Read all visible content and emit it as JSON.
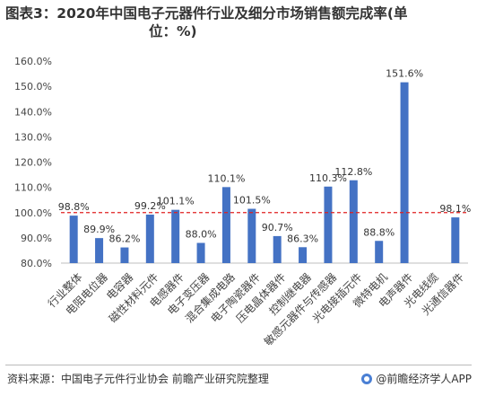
{
  "header": {
    "title_line1": "图表3：2020年中国电子元器件行业及细分市场销售额完成率(单",
    "title_line2": "位：%)"
  },
  "footer": {
    "source": "资料来源：中国电子元件行业协会 前瞻产业研究院整理",
    "brand": "@前瞻经济学人APP"
  },
  "colors": {
    "bar": "#4472c4",
    "reference_line": "#e02020",
    "axis_text": "#444444"
  },
  "chart_data": {
    "type": "bar",
    "categories": [
      "行业整体",
      "电阻电位器",
      "电容器",
      "磁性材料元件",
      "电感器件",
      "电子变压器",
      "混合集成电路",
      "电子陶瓷器件",
      "压电晶体器件",
      "控制继电器",
      "敏感元器件与传感器",
      "光电接插元件",
      "微特电机",
      "电声器件",
      "光电线缆",
      "光通信器件"
    ],
    "values": [
      98.8,
      89.9,
      86.2,
      99.2,
      101.1,
      88.0,
      110.1,
      101.5,
      90.7,
      86.3,
      110.3,
      112.8,
      88.8,
      151.6,
      null,
      98.1
    ],
    "data_labels": [
      "98.8%",
      "89.9%",
      "86.2%",
      "99.2%",
      "101.1%",
      "88.0%",
      "110.1%",
      "101.5%",
      "90.7%",
      "86.3%",
      "110.3%",
      "112.8%",
      "88.8%",
      "151.6%",
      "",
      "98.1%"
    ],
    "yticks": [
      "80.0%",
      "90.0%",
      "100.0%",
      "110.0%",
      "120.0%",
      "130.0%",
      "140.0%",
      "150.0%",
      "160.0%"
    ],
    "ylim": [
      80,
      160
    ],
    "reference_value": 100,
    "reference_style": "dashed",
    "legend": "none",
    "grid": false
  }
}
